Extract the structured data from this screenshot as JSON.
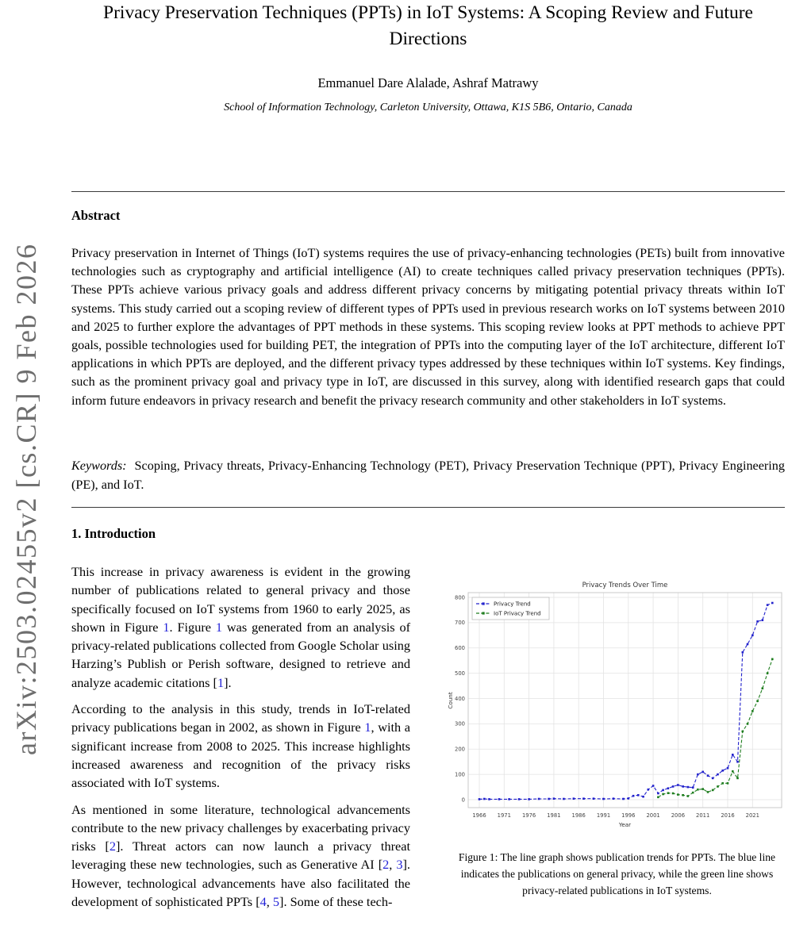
{
  "watermark": {
    "text": "arXiv:2503.02455v2  [cs.CR]  9 Feb 2026"
  },
  "colors": {
    "link": "#2323d8",
    "watermark": "#6e6e6e"
  },
  "header": {
    "title": "Privacy Preservation Techniques (PPTs) in IoT Systems: A Scoping Review and Future Directions",
    "authors": "Emmanuel Dare Alalade, Ashraf Matrawy",
    "affiliation": "School of Information Technology, Carleton University, Ottawa, K1S 5B6, Ontario, Canada"
  },
  "abstract": {
    "heading": "Abstract",
    "body": "Privacy preservation in Internet of Things (IoT) systems requires the use of privacy-enhancing technologies (PETs) built from innovative technologies such as cryptography and artificial intelligence (AI) to create techniques called privacy preservation techniques (PPTs). These PPTs achieve various privacy goals and address different privacy concerns by mitigating potential privacy threats within IoT systems. This study carried out a scoping review of different types of PPTs used in previous research works on IoT systems between 2010 and 2025 to further explore the advantages of PPT methods in these systems. This scoping review looks at PPT methods to achieve PPT goals, possible technologies used for building PET, the integration of PPTs into the computing layer of the IoT architecture, different IoT applications in which PPTs are deployed, and the different privacy types addressed by these techniques within IoT systems. Key findings, such as the prominent privacy goal and privacy type in IoT, are discussed in this survey, along with identified research gaps that could inform future endeavors in privacy research and benefit the privacy research community and other stakeholders in IoT systems.",
    "keywords_label": "Keywords:",
    "keywords": "Scoping, Privacy threats, Privacy-Enhancing Technology (PET), Privacy Preservation Technique (PPT), Privacy Engineering (PE), and IoT."
  },
  "introduction": {
    "heading": "1. Introduction",
    "paragraphs": [
      [
        {
          "t": "This increase in privacy awareness is evident in the growing number of publications related to general privacy and those specifically focused on IoT systems from 1960 to early 2025, as shown in Figure "
        },
        {
          "t": "1",
          "link": true
        },
        {
          "t": ". Figure "
        },
        {
          "t": "1",
          "link": true
        },
        {
          "t": " was generated from an analysis of privacy-related publications collected from Google Scholar using Harzing’s Publish or Perish software, designed to retrieve and analyze academic citations ["
        },
        {
          "t": "1",
          "link": true
        },
        {
          "t": "]."
        }
      ],
      [
        {
          "t": "According to the analysis in this study, trends in IoT-related privacy publications began in 2002, as shown in Figure "
        },
        {
          "t": "1",
          "link": true
        },
        {
          "t": ", with a significant increase from 2008 to 2025. This increase highlights increased awareness and recognition of the privacy risks associated with IoT systems."
        }
      ],
      [
        {
          "t": "As mentioned in some literature, technological advancements contribute to the new privacy challenges by exacerbating privacy risks ["
        },
        {
          "t": "2",
          "link": true
        },
        {
          "t": "]. Threat actors can now launch a privacy threat leveraging these new technologies, such as Generative AI ["
        },
        {
          "t": "2",
          "link": true
        },
        {
          "t": ", "
        },
        {
          "t": "3",
          "link": true
        },
        {
          "t": "]. However, technological advancements have also facilitated the development of sophisticated PPTs ["
        },
        {
          "t": "4",
          "link": true
        },
        {
          "t": ", "
        },
        {
          "t": "5",
          "link": true
        },
        {
          "t": "]. Some of these tech-"
        }
      ]
    ]
  },
  "figure": {
    "caption_text": "Figure 1: The line graph shows publication trends for PPTs. The blue line indicates the publications on general privacy, while the green line shows privacy-related publications in IoT systems."
  },
  "chart_data": {
    "type": "line",
    "title": "Privacy Trends Over Time",
    "xlabel": "Year",
    "ylabel": "Count",
    "xlim": [
      1963,
      2027
    ],
    "ylim": [
      0,
      800
    ],
    "xticks": [
      1966,
      1971,
      1976,
      1981,
      1986,
      1991,
      1996,
      2001,
      2006,
      2011,
      2016,
      2021
    ],
    "yticks": [
      0,
      100,
      200,
      300,
      400,
      500,
      600,
      700,
      800
    ],
    "grid": true,
    "legend_position": "upper left",
    "series": [
      {
        "name": "Privacy Trend",
        "color": "#2121cc",
        "x": [
          1966,
          1967,
          1968,
          1970,
          1972,
          1974,
          1976,
          1978,
          1980,
          1981,
          1983,
          1985,
          1987,
          1989,
          1991,
          1993,
          1995,
          1996,
          1997,
          1998,
          1999,
          2000,
          2001,
          2002,
          2003,
          2004,
          2005,
          2006,
          2007,
          2008,
          2009,
          2010,
          2011,
          2012,
          2013,
          2014,
          2015,
          2016,
          2017,
          2018,
          2019,
          2020,
          2021,
          2022,
          2023,
          2024,
          2025
        ],
        "y": [
          2,
          3,
          2,
          2,
          2,
          2,
          2,
          3,
          3,
          4,
          3,
          4,
          4,
          4,
          3,
          4,
          3,
          5,
          15,
          18,
          12,
          40,
          55,
          25,
          38,
          45,
          52,
          58,
          52,
          50,
          48,
          100,
          110,
          95,
          85,
          100,
          115,
          125,
          178,
          150,
          583,
          615,
          650,
          705,
          710,
          770,
          778
        ]
      },
      {
        "name": "IoT Privacy Trend",
        "color": "#1e7d1e",
        "x": [
          2002,
          2003,
          2004,
          2005,
          2006,
          2007,
          2008,
          2009,
          2010,
          2011,
          2012,
          2013,
          2014,
          2015,
          2016,
          2017,
          2018,
          2019,
          2020,
          2021,
          2022,
          2023,
          2024,
          2025
        ],
        "y": [
          10,
          22,
          26,
          25,
          20,
          18,
          14,
          28,
          40,
          42,
          30,
          38,
          52,
          65,
          65,
          112,
          85,
          270,
          300,
          350,
          390,
          440,
          500,
          556
        ]
      }
    ]
  }
}
